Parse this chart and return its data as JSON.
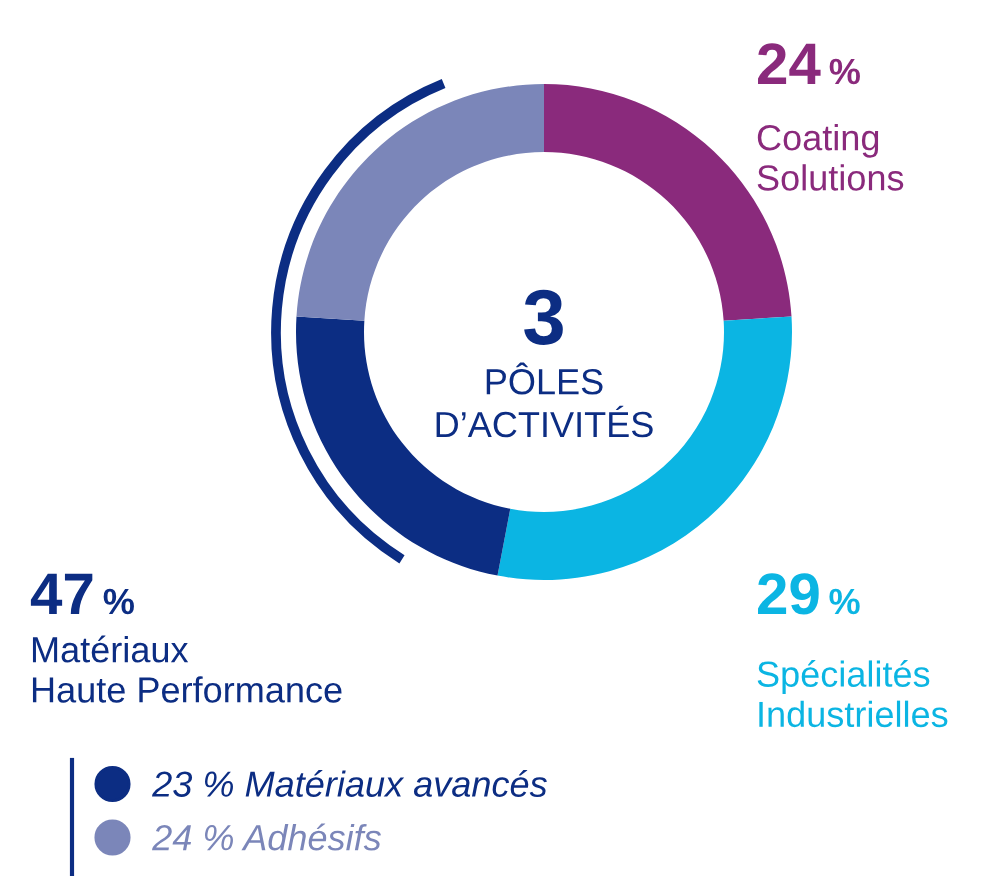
{
  "chart_data": {
    "type": "donut",
    "categories": [
      "Coating\nSolutions",
      "Spécialités\nIndustrielles",
      "Matériaux avancés",
      "Adhésifs"
    ],
    "values": [
      24,
      29,
      23,
      24
    ],
    "colors": [
      "#8a2a7c",
      "#0bb5e3",
      "#0c2d83",
      "#7b86b9"
    ],
    "legend": "bottom left",
    "value_labels": [
      "24 %",
      "29 %",
      "23 %",
      "24 %"
    ],
    "annotations": [
      "3",
      "PÔLES\nD’ACTIVITÉS",
      "47 %",
      "Matériaux\nHaute Performance"
    ]
  }
}
